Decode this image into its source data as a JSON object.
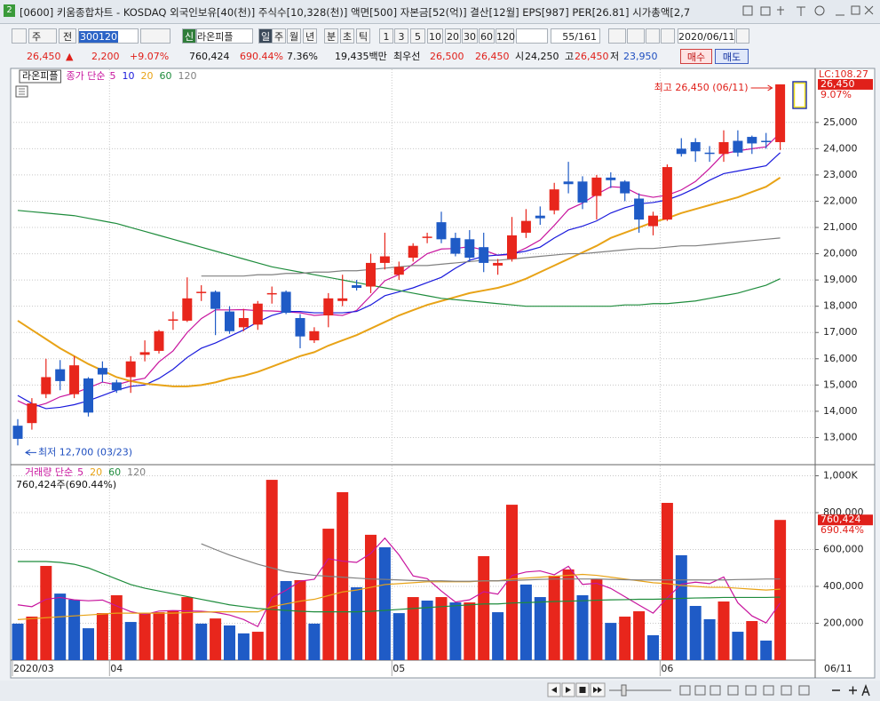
{
  "window_icon": "2",
  "title_bar": "[0600] 키움종합차트 - KOSDAQ 외국인보유[40(천)] 주식수[10,328(천)] 액면[500] 자본금[52(억)] 결산[12월] EPS[987] PER[26.81] 시가총액[2,7",
  "toolbar": {
    "period": "주",
    "prev": "전",
    "code": "300120",
    "new": "신",
    "name": "라온피플",
    "periods": [
      "일",
      "주",
      "월",
      "년",
      "분",
      "초",
      "틱"
    ],
    "intervals": [
      "1",
      "3",
      "5",
      "10",
      "20",
      "30",
      "60",
      "120"
    ],
    "count": "55/161",
    "date": "2020/06/11"
  },
  "quote": {
    "price": "26,450",
    "arrow": "▲",
    "change": "2,200",
    "change_pct": "+9.07%",
    "volume": "760,424",
    "volume_pct": "690.44%",
    "turnover": "7.36%",
    "amount": "19,435백만",
    "best_label": "최우선",
    "ask": "26,500",
    "bid": "26,450",
    "open_label": "시",
    "open": "24,250",
    "high_label": "고",
    "high": "26,450",
    "low_label": "저",
    "low": "23,950",
    "buy": "매수",
    "sell": "매도"
  },
  "chart_data": [
    {
      "type": "candlestick",
      "name": "라온피플",
      "legend_label": "종가 단순",
      "up_color": "#e8261c",
      "down_color": "#1f5bc6",
      "open": [
        13450,
        13550,
        14650,
        15600,
        14650,
        15250,
        15650,
        15100,
        15300,
        16150,
        16300,
        17450,
        17450,
        18500,
        18550,
        17800,
        17200,
        17300,
        18450,
        18550,
        17550,
        16700,
        17650,
        18200,
        18800,
        18750,
        19650,
        19200,
        19850,
        20600,
        21200,
        20600,
        20550,
        20250,
        19550,
        19800,
        20800,
        21450,
        21650,
        22750,
        22750,
        22200,
        22900,
        22750,
        22100,
        21050,
        21300,
        24000,
        24250,
        23850,
        23800,
        24300,
        24450,
        24300,
        24250
      ],
      "high": [
        13700,
        14500,
        16000,
        15950,
        16100,
        15300,
        15900,
        15200,
        16100,
        16700,
        17100,
        17800,
        19100,
        18800,
        18600,
        18000,
        17900,
        18200,
        18750,
        18600,
        17700,
        17200,
        18500,
        19200,
        19000,
        20000,
        20800,
        19700,
        20400,
        20800,
        21600,
        20800,
        20900,
        20800,
        19800,
        21400,
        21700,
        21800,
        22700,
        23500,
        22950,
        23000,
        23100,
        22800,
        22300,
        21600,
        23400,
        24400,
        24400,
        24100,
        24700,
        24700,
        24500,
        24600,
        26450
      ],
      "low": [
        12700,
        13300,
        14500,
        14800,
        14500,
        13800,
        15100,
        14700,
        14700,
        15900,
        16200,
        17100,
        17400,
        18200,
        16900,
        16950,
        17050,
        17100,
        18100,
        17700,
        16400,
        16600,
        17200,
        18000,
        18600,
        18500,
        19400,
        19000,
        19700,
        20400,
        20400,
        19900,
        19700,
        19300,
        19200,
        19700,
        20600,
        21100,
        21500,
        22300,
        21700,
        21300,
        22500,
        22000,
        20800,
        20700,
        21250,
        23700,
        23500,
        23500,
        23500,
        23700,
        23800,
        24000,
        23950
      ],
      "close": [
        12950,
        14300,
        15300,
        15150,
        15750,
        13950,
        15400,
        14800,
        15900,
        16250,
        17050,
        17500,
        18300,
        18550,
        17900,
        17050,
        17550,
        18100,
        18500,
        17750,
        16850,
        17050,
        18300,
        18300,
        18700,
        19650,
        19900,
        19500,
        20300,
        20650,
        20550,
        20000,
        19850,
        19650,
        19650,
        20700,
        21250,
        21350,
        22450,
        22650,
        21950,
        22900,
        22800,
        22300,
        21300,
        21450,
        23300,
        23800,
        23900,
        23800,
        24250,
        23850,
        24200,
        24250,
        26450
      ],
      "series": [
        {
          "name": "5",
          "color": "#c8159e",
          "values": [
            14400,
            14150,
            14300,
            14550,
            14690,
            14890,
            15110,
            15010,
            15160,
            15260,
            15880,
            16300,
            17000,
            17530,
            17860,
            17860,
            17870,
            17830,
            17820,
            17790,
            17750,
            17650,
            17690,
            17650,
            17840,
            18400,
            18970,
            19210,
            19610,
            20000,
            20180,
            20200,
            20270,
            20140,
            19940,
            19970,
            20220,
            20520,
            21080,
            21680,
            21930,
            22260,
            22550,
            22520,
            22250,
            22150,
            22230,
            22430,
            22750,
            23250,
            23810,
            23920,
            24000,
            24070,
            24600
          ]
        },
        {
          "name": "10",
          "color": "#1a1adc",
          "values": [
            14600,
            14300,
            14100,
            14150,
            14250,
            14400,
            14600,
            14800,
            14950,
            15000,
            15250,
            15600,
            16050,
            16400,
            16600,
            16850,
            17100,
            17400,
            17650,
            17800,
            17800,
            17750,
            17750,
            17750,
            17800,
            18050,
            18400,
            18550,
            18700,
            18900,
            19100,
            19450,
            19750,
            19900,
            19950,
            20000,
            20100,
            20250,
            20600,
            20900,
            21050,
            21250,
            21550,
            21750,
            21900,
            21950,
            22050,
            22250,
            22500,
            22800,
            23050,
            23150,
            23250,
            23350,
            23850
          ]
        },
        {
          "name": "20",
          "color": "#e8a317",
          "values": [
            17450,
            17100,
            16750,
            16400,
            16100,
            15800,
            15550,
            15300,
            15150,
            15050,
            15000,
            14950,
            14950,
            15000,
            15100,
            15250,
            15350,
            15500,
            15700,
            15900,
            16100,
            16250,
            16500,
            16700,
            16900,
            17150,
            17400,
            17650,
            17850,
            18050,
            18200,
            18350,
            18500,
            18600,
            18700,
            18850,
            19050,
            19300,
            19550,
            19800,
            20050,
            20300,
            20600,
            20800,
            21000,
            21200,
            21350,
            21550,
            21700,
            21850,
            22000,
            22150,
            22350,
            22550,
            22900
          ]
        },
        {
          "name": "60",
          "color": "#1e8c3c",
          "values": [
            21650,
            21600,
            21550,
            21500,
            21450,
            21350,
            21250,
            21150,
            21000,
            20850,
            20700,
            20550,
            20400,
            20250,
            20100,
            19950,
            19800,
            19650,
            19500,
            19400,
            19300,
            19200,
            19100,
            19000,
            18900,
            18800,
            18700,
            18600,
            18500,
            18400,
            18300,
            18250,
            18200,
            18150,
            18100,
            18050,
            18000,
            18000,
            18000,
            18000,
            18000,
            18000,
            18000,
            18050,
            18050,
            18100,
            18100,
            18150,
            18200,
            18300,
            18400,
            18500,
            18650,
            18800,
            19050
          ]
        },
        {
          "name": "120",
          "color": "#808080",
          "values": [
            null,
            null,
            null,
            null,
            null,
            null,
            null,
            null,
            null,
            null,
            null,
            null,
            null,
            19150,
            19150,
            19150,
            19150,
            19200,
            19200,
            19250,
            19250,
            19300,
            19300,
            19350,
            19350,
            19400,
            19450,
            19500,
            19550,
            19550,
            19600,
            19650,
            19700,
            19750,
            19750,
            19800,
            19850,
            19900,
            19950,
            20000,
            20000,
            20050,
            20100,
            20150,
            20200,
            20200,
            20250,
            20300,
            20300,
            20350,
            20400,
            20450,
            20500,
            20550,
            20600
          ]
        }
      ],
      "ylim": [
        12000,
        26550
      ],
      "yticks": [
        {
          "value": 13000,
          "label": "13,000"
        },
        {
          "value": 14000,
          "label": "14,000"
        },
        {
          "value": 15000,
          "label": "15,000"
        },
        {
          "value": 16000,
          "label": "16,000"
        },
        {
          "value": 17000,
          "label": "17,000"
        },
        {
          "value": 18000,
          "label": "18,000"
        },
        {
          "value": 19000,
          "label": "19,000"
        },
        {
          "value": 20000,
          "label": "20,000"
        },
        {
          "value": 21000,
          "label": "21,000"
        },
        {
          "value": 22000,
          "label": "22,000"
        },
        {
          "value": 23000,
          "label": "23,000"
        },
        {
          "value": 24000,
          "label": "24,000"
        },
        {
          "value": 25000,
          "label": "25,000"
        }
      ],
      "grid": true,
      "high_annotation": "최고 26,450 (06/11)",
      "low_annotation": "최저 12,700 (03/23)",
      "lc_label": "LC:108.27",
      "last_label": "26,450",
      "last_pct": "9.07%"
    },
    {
      "type": "bar",
      "legend_label": "거래량 단순",
      "value_label": "760,424주(690.44%)",
      "up_color": "#e8261c",
      "down_color": "#1f5bc6",
      "categories": [
        "2020/03",
        null,
        null,
        null,
        null,
        null,
        null,
        "04",
        null,
        null,
        null,
        null,
        null,
        null,
        null,
        null,
        null,
        null,
        null,
        null,
        null,
        null,
        null,
        null,
        null,
        null,
        null,
        "05",
        null,
        null,
        null,
        null,
        null,
        null,
        null,
        null,
        null,
        null,
        null,
        null,
        null,
        null,
        null,
        null,
        null,
        null,
        "06",
        null,
        null,
        null,
        null,
        null,
        null,
        null,
        null
      ],
      "x_end_label": "06/11",
      "values": [
        198000,
        236000,
        511000,
        361000,
        328000,
        173000,
        255000,
        352000,
        207000,
        255000,
        260000,
        270000,
        342000,
        198000,
        226000,
        188000,
        145000,
        154000,
        978000,
        429000,
        434000,
        198000,
        713000,
        911000,
        395000,
        680000,
        612000,
        255000,
        342000,
        323000,
        342000,
        313000,
        313000,
        564000,
        260000,
        843000,
        410000,
        342000,
        458000,
        492000,
        352000,
        439000,
        202000,
        236000,
        265000,
        135000,
        853000,
        569000,
        294000,
        222000,
        318000,
        154000,
        212000,
        106000,
        760424
      ],
      "series": [
        {
          "name": "5",
          "color": "#c8159e",
          "values": [
            300000,
            290000,
            330000,
            340000,
            327000,
            322000,
            326000,
            294000,
            263000,
            248000,
            266000,
            269000,
            267000,
            265000,
            259000,
            245000,
            220000,
            182000,
            338000,
            379000,
            428000,
            439000,
            550000,
            537000,
            530000,
            579000,
            662000,
            571000,
            457000,
            442000,
            375000,
            315000,
            327000,
            371000,
            358000,
            459000,
            478000,
            484000,
            463000,
            509000,
            411000,
            417000,
            389000,
            344000,
            299000,
            255000,
            338000,
            412000,
            423000,
            415000,
            451000,
            311000,
            240000,
            202000,
            310000
          ]
        },
        {
          "name": "20",
          "color": "#e8a317",
          "values": [
            220000,
            225000,
            230000,
            235000,
            240000,
            245000,
            250000,
            255000,
            255000,
            255000,
            255000,
            255000,
            258000,
            260000,
            262000,
            262000,
            262000,
            262000,
            290000,
            305000,
            320000,
            330000,
            350000,
            370000,
            380000,
            395000,
            410000,
            415000,
            420000,
            425000,
            425000,
            425000,
            425000,
            430000,
            430000,
            440000,
            445000,
            450000,
            455000,
            460000,
            465000,
            460000,
            450000,
            440000,
            430000,
            420000,
            415000,
            405000,
            400000,
            395000,
            395000,
            390000,
            385000,
            380000,
            385000
          ]
        },
        {
          "name": "60",
          "color": "#1e8c3c",
          "values": [
            535000,
            535000,
            535000,
            530000,
            520000,
            500000,
            470000,
            440000,
            410000,
            390000,
            375000,
            360000,
            345000,
            330000,
            315000,
            300000,
            290000,
            280000,
            275000,
            270000,
            265000,
            262000,
            262000,
            262000,
            262000,
            265000,
            270000,
            275000,
            280000,
            285000,
            290000,
            295000,
            300000,
            305000,
            305000,
            310000,
            312000,
            315000,
            318000,
            320000,
            322000,
            325000,
            327000,
            328000,
            330000,
            330000,
            332000,
            335000,
            337000,
            338000,
            340000,
            340000,
            340000,
            340000,
            342000
          ]
        },
        {
          "name": "120",
          "color": "#808080",
          "values": [
            null,
            null,
            null,
            null,
            null,
            null,
            null,
            null,
            null,
            null,
            null,
            null,
            null,
            631000,
            600000,
            570000,
            545000,
            520000,
            500000,
            480000,
            470000,
            460000,
            455000,
            450000,
            445000,
            440000,
            438000,
            435000,
            432000,
            430000,
            430000,
            428000,
            428000,
            430000,
            430000,
            432000,
            435000,
            438000,
            440000,
            440000,
            440000,
            440000,
            438000,
            436000,
            435000,
            435000,
            435000,
            435000,
            435000,
            435000,
            435000,
            437000,
            438000,
            440000,
            440000
          ]
        }
      ],
      "ylim": [
        0,
        1041000
      ],
      "yticks": [
        {
          "value": 200000,
          "label": "200,000"
        },
        {
          "value": 400000,
          "label": "400,000"
        },
        {
          "value": 600000,
          "label": "600,000"
        },
        {
          "value": 800000,
          "label": "800,000"
        },
        {
          "value": 1000000,
          "label": "1,000K"
        }
      ],
      "grid": true,
      "last_label": "760,424",
      "last_pct": "690.44%"
    }
  ]
}
